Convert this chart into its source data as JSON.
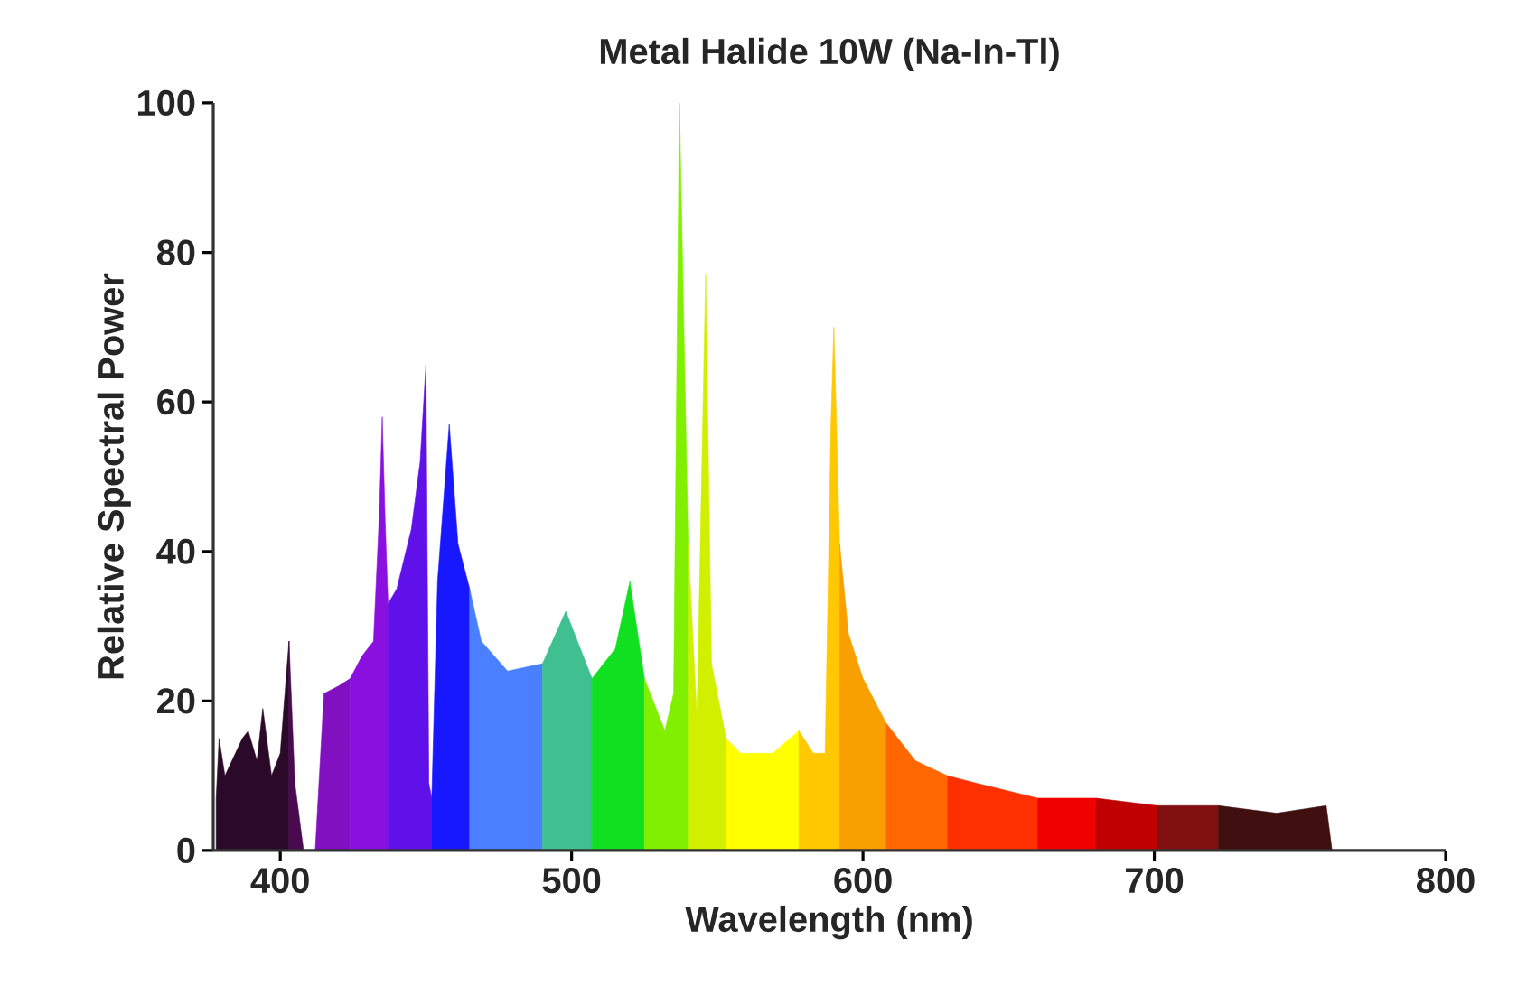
{
  "chart_data": {
    "type": "area",
    "title": "Metal Halide 10W (Na-In-Tl)",
    "xlabel": "Wavelength (nm)",
    "ylabel": "Relative Spectral Power",
    "xlim": [
      377,
      800
    ],
    "ylim": [
      0,
      100
    ],
    "xticks": [
      400,
      500,
      600,
      700,
      800
    ],
    "yticks": [
      0,
      20,
      40,
      60,
      80,
      100
    ],
    "series": [
      {
        "color": "#2a0a28",
        "x": [
          378,
          379,
          381,
          387,
          389,
          392,
          394,
          397,
          400,
          403
        ],
        "values": [
          7,
          15,
          10,
          15,
          16,
          12,
          19,
          10,
          13,
          28
        ]
      },
      {
        "color": "#4a0a50",
        "x": [
          403,
          405,
          408,
          412
        ],
        "values": [
          28,
          9,
          0,
          0
        ]
      },
      {
        "color": "#8010c0",
        "x": [
          412,
          415,
          420,
          424
        ],
        "values": [
          0,
          21,
          22,
          23
        ]
      },
      {
        "color": "#8a10e0",
        "x": [
          424,
          428,
          432,
          434,
          435,
          436,
          437
        ],
        "values": [
          23,
          26,
          28,
          45,
          58,
          44,
          33
        ]
      },
      {
        "color": "#6010e8",
        "x": [
          437,
          440,
          445,
          448,
          450,
          451,
          452
        ],
        "values": [
          33,
          35,
          43,
          52,
          65,
          9,
          7
        ]
      },
      {
        "color": "#1818ff",
        "x": [
          452,
          454,
          458,
          461,
          465
        ],
        "values": [
          7,
          36,
          57,
          41,
          35
        ]
      },
      {
        "color": "#4a80ff",
        "x": [
          465,
          469,
          478,
          490
        ],
        "values": [
          35,
          28,
          24,
          25
        ]
      },
      {
        "color": "#40c090",
        "x": [
          490,
          498,
          507
        ],
        "values": [
          25,
          32,
          23
        ]
      },
      {
        "color": "#10e020",
        "x": [
          507,
          515,
          520,
          525
        ],
        "values": [
          23,
          27,
          36,
          23
        ]
      },
      {
        "color": "#80f000",
        "x": [
          525,
          532,
          535,
          537,
          540
        ],
        "values": [
          23,
          16,
          21,
          100,
          41
        ]
      },
      {
        "color": "#d0f000",
        "x": [
          540,
          543,
          546,
          548,
          553
        ],
        "values": [
          41,
          18,
          77,
          25,
          15
        ]
      },
      {
        "color": "#ffff00",
        "x": [
          553,
          558,
          569,
          578
        ],
        "values": [
          15,
          13,
          13,
          16
        ]
      },
      {
        "color": "#ffc800",
        "x": [
          578,
          583,
          587,
          589,
          590,
          592
        ],
        "values": [
          16,
          13,
          13,
          57,
          70,
          41
        ]
      },
      {
        "color": "#f8a000",
        "x": [
          592,
          595,
          600,
          608
        ],
        "values": [
          41,
          29,
          23,
          17
        ]
      },
      {
        "color": "#ff6800",
        "x": [
          608,
          618,
          629
        ],
        "values": [
          17,
          12,
          10
        ]
      },
      {
        "color": "#ff3000",
        "x": [
          629,
          639,
          660
        ],
        "values": [
          10,
          9,
          7
        ]
      },
      {
        "color": "#f00000",
        "x": [
          660,
          680
        ],
        "values": [
          7,
          7
        ]
      },
      {
        "color": "#c00000",
        "x": [
          680,
          701
        ],
        "values": [
          7,
          6
        ]
      },
      {
        "color": "#801010",
        "x": [
          701,
          722
        ],
        "values": [
          6,
          6
        ]
      },
      {
        "color": "#401010",
        "x": [
          722,
          742,
          759,
          761
        ],
        "values": [
          6,
          5,
          6,
          0
        ]
      }
    ]
  }
}
